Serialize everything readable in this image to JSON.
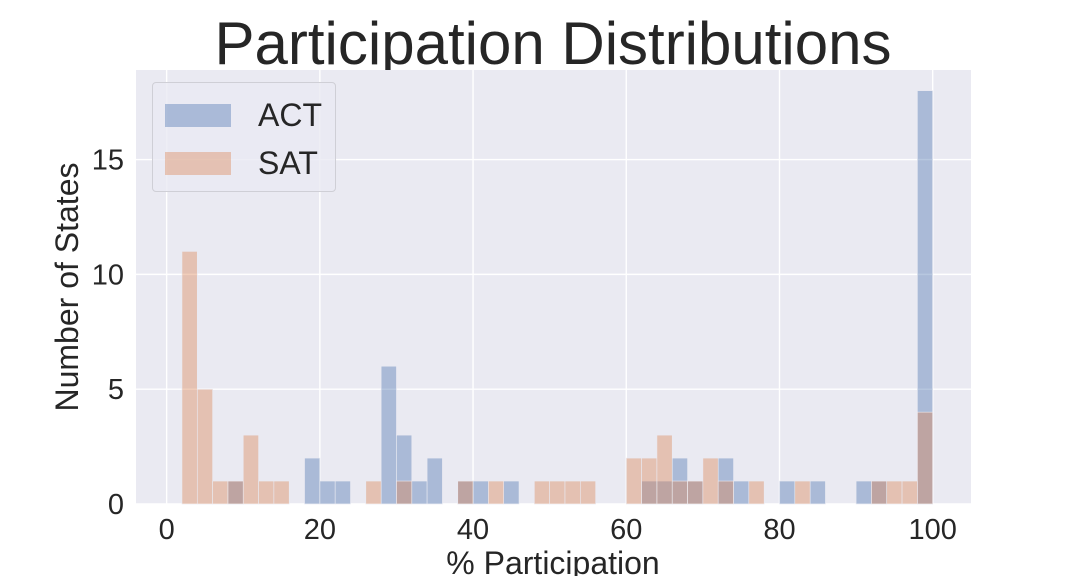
{
  "chart_data": {
    "type": "bar",
    "title": "Participation Distributions",
    "xlabel": "% Participation",
    "ylabel": "Number of States",
    "xlim": [
      -4,
      105
    ],
    "ylim": [
      0,
      18.9
    ],
    "xticks": [
      "0",
      "20",
      "40",
      "60",
      "80",
      "100"
    ],
    "yticks": [
      "0",
      "5",
      "10",
      "15"
    ],
    "grid": true,
    "legend_position": "top-left",
    "series": [
      {
        "name": "ACT",
        "color": "#4c72b0",
        "bins": [
          {
            "x0": 8,
            "x1": 10,
            "count": 1
          },
          {
            "x0": 18,
            "x1": 20,
            "count": 2
          },
          {
            "x0": 20,
            "x1": 22,
            "count": 1
          },
          {
            "x0": 22,
            "x1": 24,
            "count": 1
          },
          {
            "x0": 28,
            "x1": 30,
            "count": 6
          },
          {
            "x0": 30,
            "x1": 32,
            "count": 3
          },
          {
            "x0": 32,
            "x1": 34,
            "count": 1
          },
          {
            "x0": 34,
            "x1": 36,
            "count": 2
          },
          {
            "x0": 38,
            "x1": 40,
            "count": 1
          },
          {
            "x0": 40,
            "x1": 42,
            "count": 1
          },
          {
            "x0": 44,
            "x1": 46,
            "count": 1
          },
          {
            "x0": 62,
            "x1": 64,
            "count": 1
          },
          {
            "x0": 64,
            "x1": 66,
            "count": 1
          },
          {
            "x0": 66,
            "x1": 68,
            "count": 2
          },
          {
            "x0": 68,
            "x1": 70,
            "count": 1
          },
          {
            "x0": 72,
            "x1": 74,
            "count": 2
          },
          {
            "x0": 74,
            "x1": 76,
            "count": 1
          },
          {
            "x0": 80,
            "x1": 82,
            "count": 1
          },
          {
            "x0": 84,
            "x1": 86,
            "count": 1
          },
          {
            "x0": 90,
            "x1": 92,
            "count": 1
          },
          {
            "x0": 92,
            "x1": 94,
            "count": 1
          },
          {
            "x0": 98,
            "x1": 100,
            "count": 18
          }
        ]
      },
      {
        "name": "SAT",
        "color": "#dd8452",
        "bins": [
          {
            "x0": 2,
            "x1": 4,
            "count": 11
          },
          {
            "x0": 4,
            "x1": 6,
            "count": 5
          },
          {
            "x0": 6,
            "x1": 8,
            "count": 1
          },
          {
            "x0": 8,
            "x1": 10,
            "count": 1
          },
          {
            "x0": 10,
            "x1": 12,
            "count": 3
          },
          {
            "x0": 12,
            "x1": 14,
            "count": 1
          },
          {
            "x0": 14,
            "x1": 16,
            "count": 1
          },
          {
            "x0": 26,
            "x1": 28,
            "count": 1
          },
          {
            "x0": 30,
            "x1": 32,
            "count": 1
          },
          {
            "x0": 38,
            "x1": 40,
            "count": 1
          },
          {
            "x0": 42,
            "x1": 44,
            "count": 1
          },
          {
            "x0": 48,
            "x1": 50,
            "count": 1
          },
          {
            "x0": 50,
            "x1": 52,
            "count": 1
          },
          {
            "x0": 52,
            "x1": 54,
            "count": 1
          },
          {
            "x0": 54,
            "x1": 56,
            "count": 1
          },
          {
            "x0": 60,
            "x1": 62,
            "count": 2
          },
          {
            "x0": 62,
            "x1": 64,
            "count": 2
          },
          {
            "x0": 64,
            "x1": 66,
            "count": 3
          },
          {
            "x0": 66,
            "x1": 68,
            "count": 1
          },
          {
            "x0": 68,
            "x1": 70,
            "count": 1
          },
          {
            "x0": 70,
            "x1": 72,
            "count": 2
          },
          {
            "x0": 72,
            "x1": 74,
            "count": 1
          },
          {
            "x0": 76,
            "x1": 78,
            "count": 1
          },
          {
            "x0": 82,
            "x1": 84,
            "count": 1
          },
          {
            "x0": 92,
            "x1": 94,
            "count": 1
          },
          {
            "x0": 94,
            "x1": 96,
            "count": 1
          },
          {
            "x0": 96,
            "x1": 98,
            "count": 1
          },
          {
            "x0": 98,
            "x1": 100,
            "count": 4
          }
        ]
      }
    ]
  }
}
